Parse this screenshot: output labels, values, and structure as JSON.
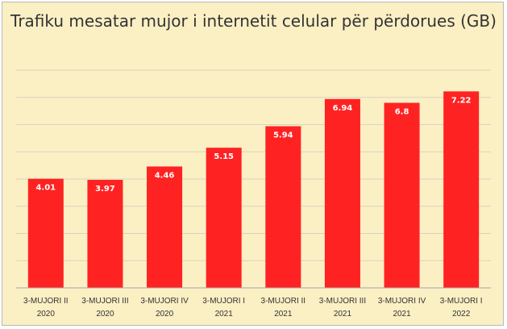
{
  "chart_data": {
    "type": "bar",
    "title": "Trafiku mesatar mujor i internetit celular për përdorues (GB)",
    "categories": [
      [
        "3-MUJORI II",
        "2020"
      ],
      [
        "3-MUJORI III",
        "2020"
      ],
      [
        "3-MUJORI IV",
        "2020"
      ],
      [
        "3-MUJORI I",
        "2021"
      ],
      [
        "3-MUJORI II",
        "2021"
      ],
      [
        "3-MUJORI III",
        "2021"
      ],
      [
        "3-MUJORI IV",
        "2021"
      ],
      [
        "3-MUJORI I",
        "2022"
      ]
    ],
    "values": [
      4.01,
      3.97,
      4.46,
      5.15,
      5.94,
      6.94,
      6.8,
      7.22
    ],
    "value_labels": [
      "4.01",
      "3.97",
      "4.46",
      "5.15",
      "5.94",
      "6.94",
      "6.8",
      "7.22"
    ],
    "xlabel": "",
    "ylabel": "",
    "ylim": [
      0,
      8
    ],
    "grid": true,
    "legend": "none",
    "colors": {
      "bar": "#ff2222",
      "grid": "#d9d3bd",
      "background": "#fbefc4",
      "axis": "#a6a6a6"
    }
  }
}
